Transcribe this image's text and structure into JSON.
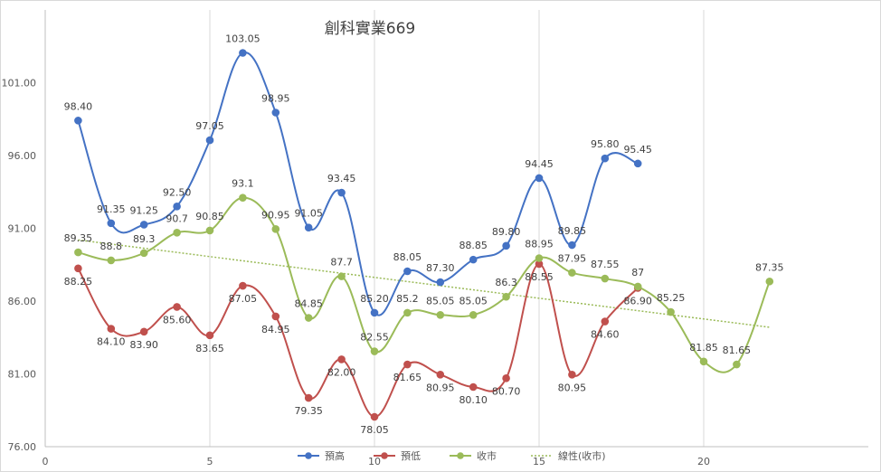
{
  "chart_data": {
    "type": "line",
    "title": "創科實業669",
    "xlabel": "",
    "ylabel": "",
    "xlim": [
      0,
      25
    ],
    "ylim": [
      76.0,
      106.0
    ],
    "x_ticks": [
      0,
      5,
      10,
      15,
      20
    ],
    "y_ticks": [
      "76.00",
      "81.00",
      "86.00",
      "91.00",
      "96.00",
      "101.00"
    ],
    "y_tick_values": [
      76,
      81,
      86,
      91,
      96,
      101
    ],
    "grid": "vertical",
    "legend_position": "bottom",
    "series": [
      {
        "name": "預高",
        "color": "#4472c4",
        "x": [
          1,
          2,
          3,
          4,
          5,
          6,
          7,
          8,
          9,
          10,
          11,
          12,
          13,
          14,
          15,
          16,
          17,
          18
        ],
        "values": [
          98.4,
          91.35,
          91.25,
          92.5,
          97.05,
          103.05,
          98.95,
          91.05,
          93.45,
          85.2,
          88.05,
          87.3,
          88.85,
          89.8,
          94.45,
          89.85,
          95.8,
          95.45
        ],
        "labels": [
          "98.40",
          "91.35",
          "91.25",
          "92.50",
          "97.05",
          "103.05",
          "98.95",
          "91.05",
          "93.45",
          "85.20",
          "88.05",
          "87.30",
          "88.85",
          "89.80",
          "94.45",
          "89.85",
          "95.80",
          "95.45"
        ]
      },
      {
        "name": "預低",
        "color": "#c0504d",
        "x": [
          1,
          2,
          3,
          4,
          5,
          6,
          7,
          8,
          9,
          10,
          11,
          12,
          13,
          14,
          15,
          16,
          17,
          18
        ],
        "values": [
          88.25,
          84.1,
          83.9,
          85.6,
          83.65,
          87.05,
          84.95,
          79.35,
          82.0,
          78.05,
          81.65,
          80.95,
          80.1,
          80.7,
          88.55,
          80.95,
          84.6,
          86.9
        ],
        "labels": [
          "88.25",
          "84.10",
          "83.90",
          "85.60",
          "83.65",
          "87.05",
          "84.95",
          "79.35",
          "82.00",
          "78.05",
          "81.65",
          "80.95",
          "80.10",
          "80.70",
          "88.55",
          "80.95",
          "84.60",
          "86.90"
        ]
      },
      {
        "name": "收市",
        "color": "#9bbb59",
        "x": [
          1,
          2,
          3,
          4,
          5,
          6,
          7,
          8,
          9,
          10,
          11,
          12,
          13,
          14,
          15,
          16,
          17,
          18,
          19,
          20,
          21,
          22
        ],
        "values": [
          89.35,
          88.8,
          89.3,
          90.7,
          90.85,
          93.1,
          90.95,
          84.85,
          87.7,
          82.55,
          85.2,
          85.05,
          85.05,
          86.3,
          88.95,
          87.95,
          87.55,
          87,
          85.25,
          81.85,
          81.65,
          87.35
        ],
        "labels": [
          "89.35",
          "88.8",
          "89.3",
          "90.7",
          "90.85",
          "93.1",
          "90.95",
          "84.85",
          "87.7",
          "82.55",
          "85.2",
          "85.05",
          "85.05",
          "86.3",
          "88.95",
          "87.95",
          "87.55",
          "87",
          "85.25",
          "81.85",
          "81.65",
          "87.35"
        ]
      }
    ],
    "trendline": {
      "name": "線性(收市)",
      "color": "#9bbb59",
      "x": [
        1,
        22
      ],
      "values": [
        90.2,
        84.2
      ]
    }
  }
}
